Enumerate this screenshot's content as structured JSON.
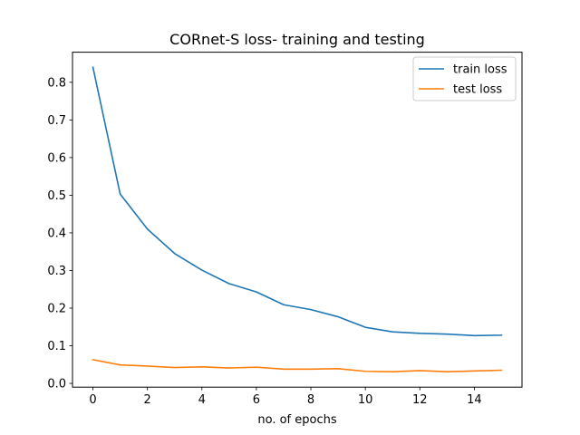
{
  "chart_data": {
    "type": "line",
    "title": "CORnet-S loss- training and testing",
    "xlabel": "no. of epochs",
    "ylabel": "",
    "x": [
      0,
      1,
      2,
      3,
      4,
      5,
      6,
      7,
      8,
      9,
      10,
      11,
      12,
      13,
      14,
      15
    ],
    "xlim": [
      -0.75,
      15.75
    ],
    "ylim": [
      -0.01,
      0.88
    ],
    "xticks": [
      0,
      2,
      4,
      6,
      8,
      10,
      12,
      14
    ],
    "yticks": [
      0.0,
      0.1,
      0.2,
      0.3,
      0.4,
      0.5,
      0.6,
      0.7,
      0.8
    ],
    "grid": false,
    "legend_position": "top-right",
    "series": [
      {
        "name": "train loss",
        "color": "#1f77b4",
        "values": [
          0.84,
          0.503,
          0.41,
          0.345,
          0.301,
          0.265,
          0.243,
          0.209,
          0.196,
          0.177,
          0.149,
          0.137,
          0.133,
          0.131,
          0.127,
          0.128
        ]
      },
      {
        "name": "test loss",
        "color": "#ff7f0e",
        "values": [
          0.063,
          0.049,
          0.046,
          0.042,
          0.044,
          0.041,
          0.043,
          0.038,
          0.038,
          0.039,
          0.032,
          0.031,
          0.034,
          0.031,
          0.033,
          0.035
        ]
      }
    ]
  }
}
